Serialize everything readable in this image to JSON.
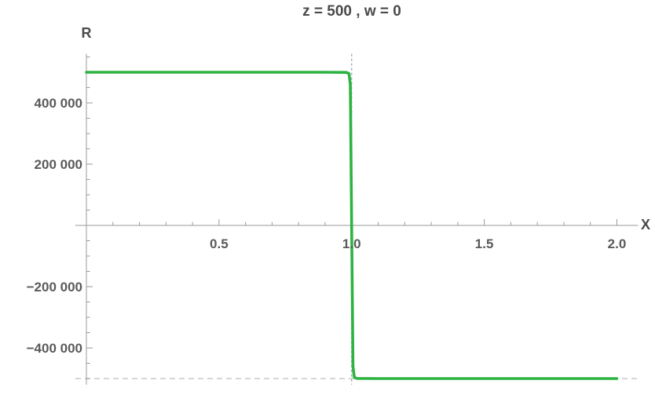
{
  "chart_data": {
    "type": "line",
    "title": "z = 500 , w = 0",
    "xlabel": "X",
    "ylabel": "R",
    "xlim": [
      0,
      2.05
    ],
    "ylim": [
      -520000,
      560000
    ],
    "x_ticks": [
      0.5,
      1.0,
      1.5,
      2.0
    ],
    "x_tick_labels": [
      "0.5",
      "1.0",
      "1.5",
      "2.0"
    ],
    "y_ticks": [
      -400000,
      -200000,
      200000,
      400000
    ],
    "y_tick_labels": [
      "−400 000",
      "−200 000",
      "200 000",
      "400 000"
    ],
    "grid": false,
    "series": [
      {
        "color": "#2db341",
        "x": [
          0.0,
          0.9,
          0.98,
          0.99,
          0.995,
          1.0,
          1.005,
          1.01,
          1.02,
          1.1,
          2.0
        ],
        "y": [
          500000,
          500000,
          499500,
          496000,
          460000,
          0,
          -460000,
          -496000,
          -499500,
          -500000,
          -500000
        ]
      }
    ],
    "reference_lines": [
      {
        "orientation": "vertical",
        "x": 1.0,
        "color": "#8a9bb8"
      },
      {
        "orientation": "horizontal",
        "y": -500000,
        "color": "#c8c8c8"
      }
    ]
  }
}
